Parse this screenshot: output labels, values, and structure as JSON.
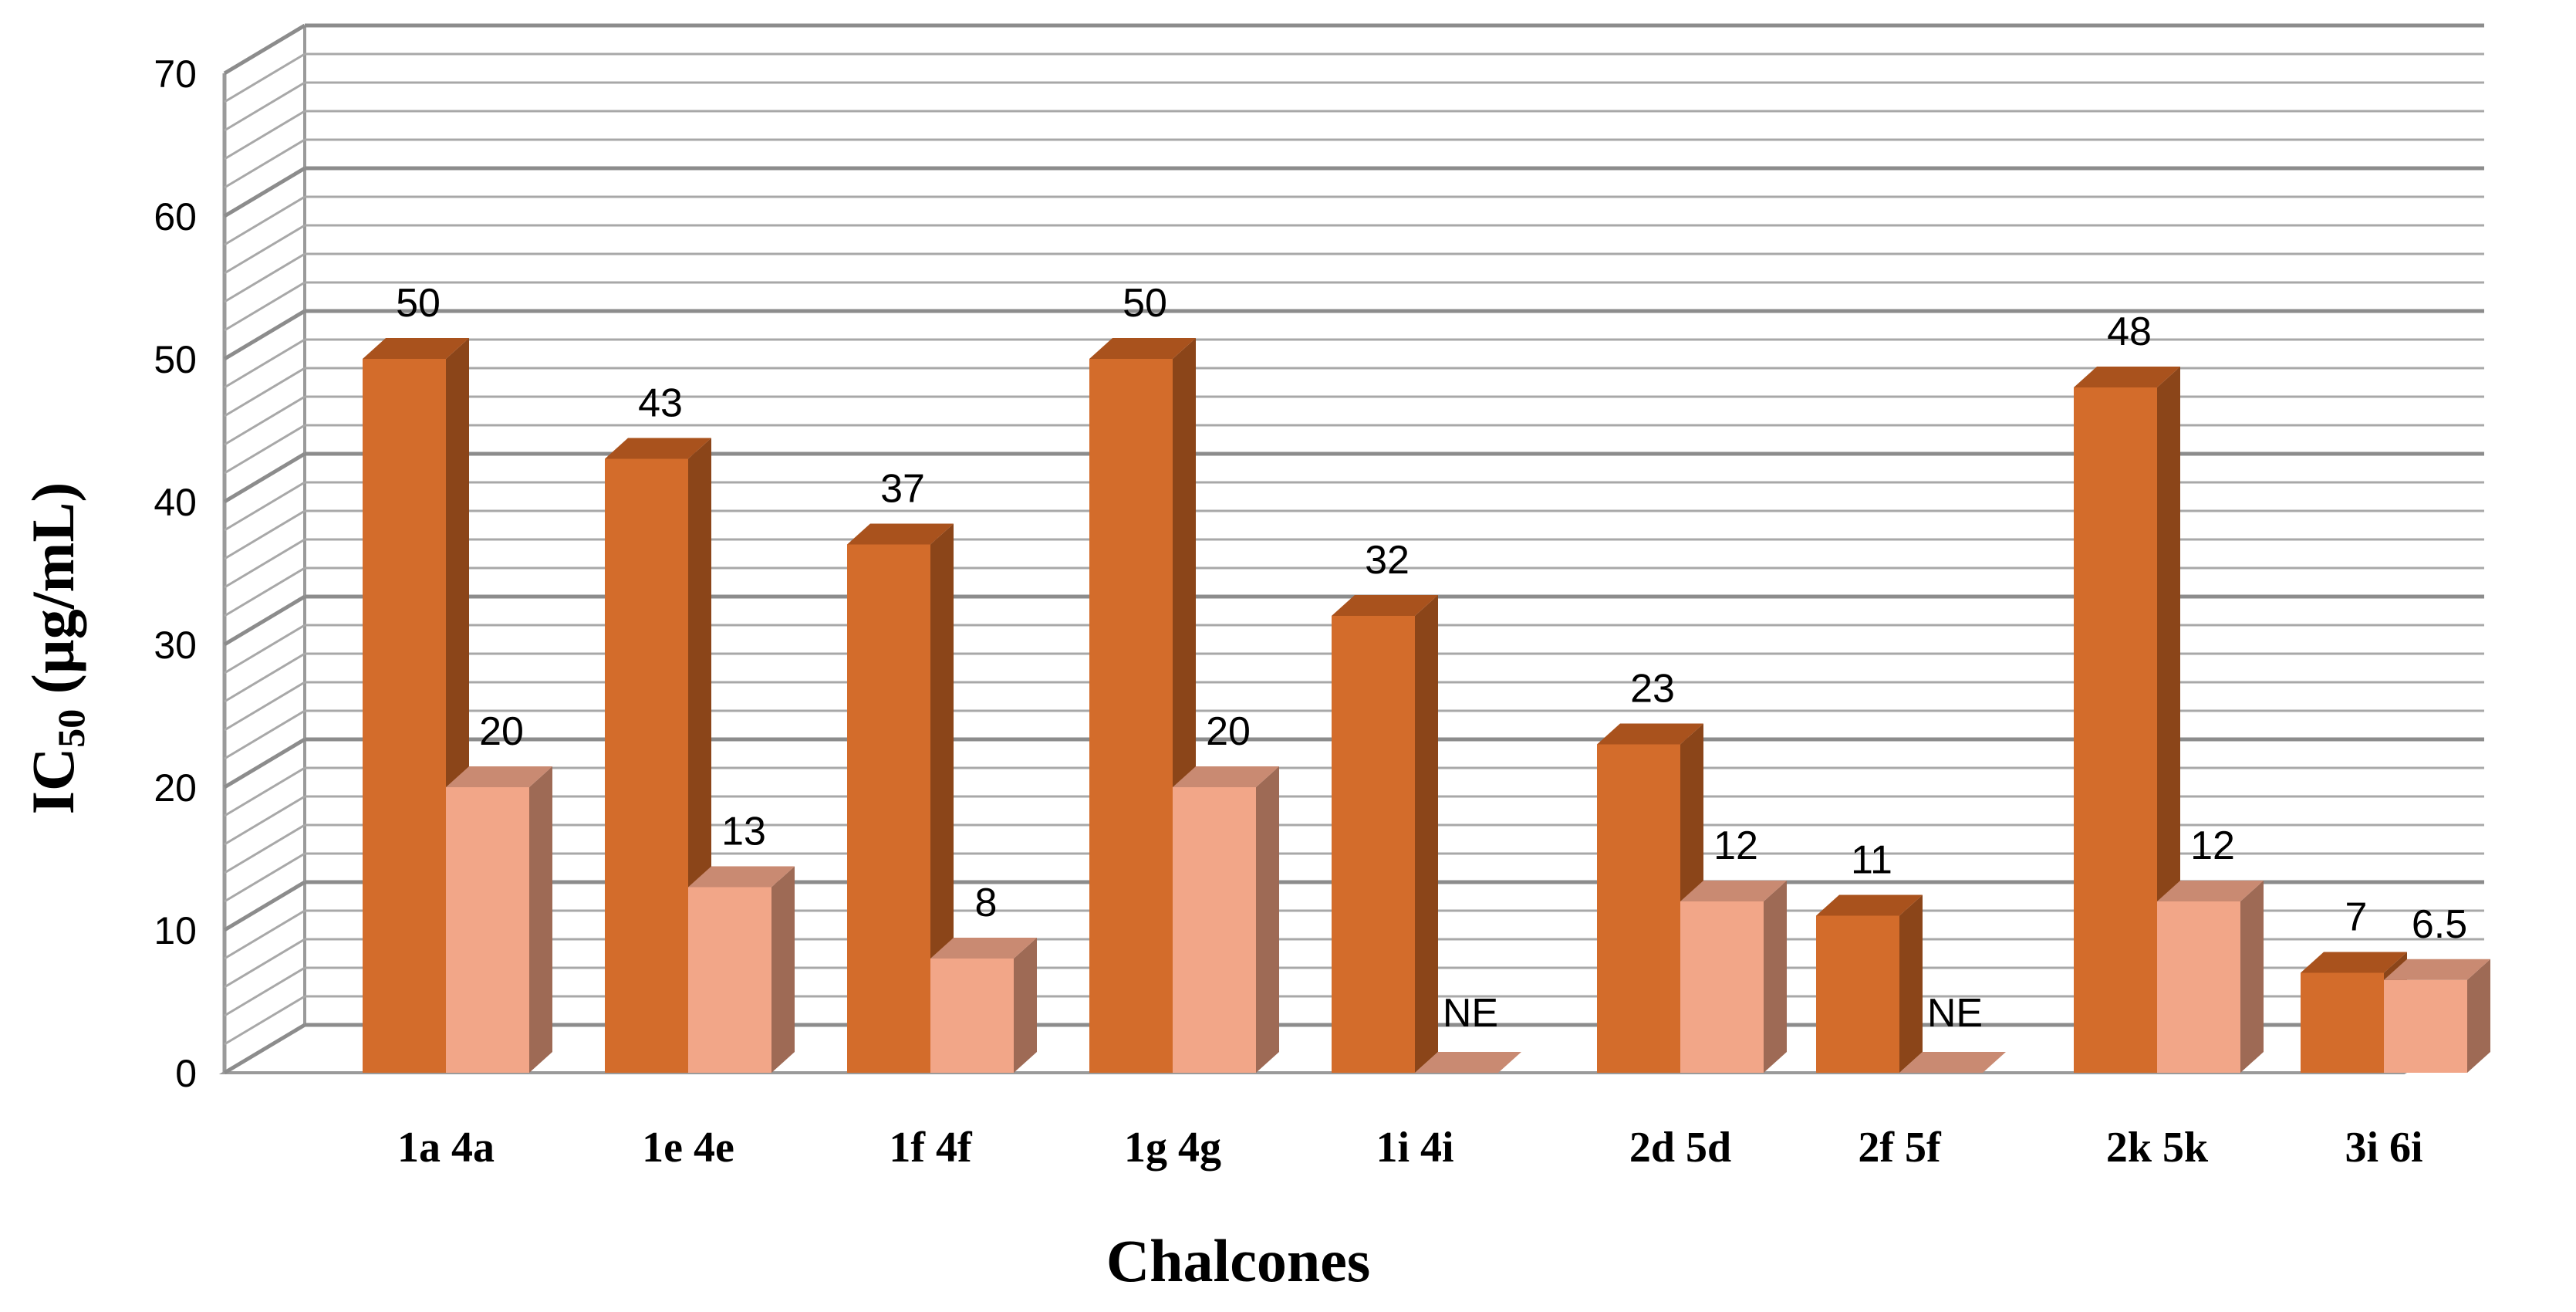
{
  "chart_data": {
    "type": "bar",
    "categories": [
      "1a 4a",
      "1e 4e",
      "1f  4f",
      "1g  4g",
      "1i  4i",
      "2d  5d",
      "2f  5f",
      "2k  5k",
      "3i  6i"
    ],
    "series": [
      {
        "values": [
          50,
          43,
          37,
          50,
          32,
          23,
          11,
          48,
          7
        ],
        "labels": [
          "50",
          "43",
          "37",
          "50",
          "32",
          "23",
          "11",
          "48",
          "7"
        ]
      },
      {
        "values": [
          20,
          13,
          8,
          20,
          0,
          12,
          0,
          12,
          6.5
        ],
        "labels": [
          "20",
          "13",
          "8",
          "20",
          "NE",
          "12",
          "NE",
          "12",
          "6.5"
        ]
      }
    ],
    "xlabel": "Chalcones",
    "ylabel_main": "IC",
    "ylabel_sub": "50",
    "ylabel_rest": " (µg/mL)",
    "ylim": [
      0,
      70
    ],
    "yticks": [
      "0",
      "10",
      "20",
      "30",
      "40",
      "50",
      "60",
      "70"
    ],
    "grid": true,
    "style": "3d-column"
  },
  "colors": {
    "series1_front": "#D36C2B",
    "series1_top": "#A9521D",
    "series1_side": "#8B4519",
    "series2_front": "#F2A688",
    "series2_top": "#C98A72",
    "series2_side": "#9E6A55",
    "grid": "#9a9a9a"
  }
}
